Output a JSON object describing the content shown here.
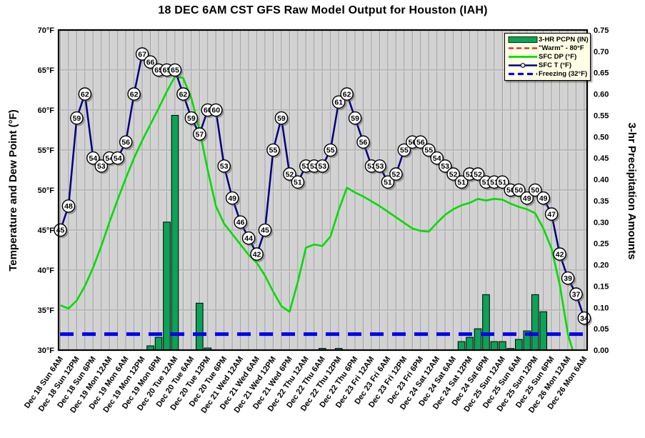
{
  "chart_data": {
    "type": "line",
    "title": "18 DEC 6AM CST GFS Raw Model Output for Houston (IAH)",
    "ylabel_left": "Temperature and Dew Point (°F)",
    "ylabel_right": "3-hr Precipitation Amounts",
    "plot": {
      "background": "#D2D2D2",
      "grid": true,
      "grid_color": "#9C9C9C",
      "border_color": "#000000"
    },
    "x_axis": {
      "start": "Dec 18 Sun 6AM",
      "step_hours": 3,
      "points": 65,
      "tick_labels": [
        "Dec 18 Sun 6AM",
        "Dec 18 Sun 12PM",
        "Dec 18 Sun 6PM",
        "Dec 19 Mon 12AM",
        "Dec 19 Mon 6AM",
        "Dec 19 Mon 12PM",
        "Dec 19 Mon 6PM",
        "Dec 20 Tue 12AM",
        "Dec 20 Tue 6AM",
        "Dec 20 Tue 12PM",
        "Dec 20 Tue 6PM",
        "Dec 21 Wed 12AM",
        "Dec 21 Wed 6AM",
        "Dec 21 Wed 12PM",
        "Dec 21 Wed 6PM",
        "Dec 22 Thu 12AM",
        "Dec 22 Thu 6AM",
        "Dec 22 Thu 12PM",
        "Dec 22 Thu 6PM",
        "Dec 23 Fri 12AM",
        "Dec 23 Fri 6AM",
        "Dec 23 Fri 12PM",
        "Dec 23 Fri 6PM",
        "Dec 24 Sat 12AM",
        "Dec 24 Sat 6AM",
        "Dec 24 Sat 12PM",
        "Dec 24 Sat 6PM",
        "Dec 25 Sun 12AM",
        "Dec 25 Sun 6AM",
        "Dec 25 Sun 12PM",
        "Dec 25 Sun 6PM",
        "Dec 26 Mon 12AM",
        "Dec 26 Mon 6AM"
      ]
    },
    "y_left_axis": {
      "min": 30,
      "max": 70,
      "step": 5,
      "tick_labels": [
        "70°F",
        "65°F",
        "60°F",
        "55°F",
        "50°F",
        "45°F",
        "40°F",
        "35°F",
        "30°F"
      ]
    },
    "y_right_axis": {
      "min": 0.0,
      "max": 0.75,
      "step": 0.05,
      "tick_labels": [
        "0.75",
        "0.70",
        "0.65",
        "0.60",
        "0.55",
        "0.50",
        "0.45",
        "0.40",
        "0.35",
        "0.30",
        "0.25",
        "0.20",
        "0.15",
        "0.10",
        "0.05",
        "0.00"
      ]
    },
    "series": [
      {
        "name": "3-HR PCPN (IN)",
        "type": "bar",
        "axis": "right",
        "color": "#0CA257",
        "values": [
          0,
          0,
          0,
          0,
          0,
          0,
          0,
          0,
          0,
          0,
          0,
          0.01,
          0.03,
          0.3,
          0.55,
          0,
          0,
          0.11,
          0.005,
          0,
          0,
          0,
          0,
          0,
          0,
          0,
          0,
          0,
          0,
          0,
          0,
          0,
          0.004,
          0,
          0.004,
          0,
          0,
          0,
          0,
          0,
          0,
          0,
          0,
          0,
          0,
          0,
          0,
          0,
          0,
          0.02,
          0.03,
          0.05,
          0.13,
          0.02,
          0.02,
          0.004,
          0.025,
          0.045,
          0.13,
          0.09,
          0,
          0,
          0,
          0,
          0
        ]
      },
      {
        "name": "\"Warm\" - 80°F",
        "type": "hline",
        "axis": "left",
        "color": "#E03030",
        "value": 80
      },
      {
        "name": "SFC DP (°F)",
        "type": "line",
        "axis": "left",
        "color": "#00DC00",
        "values": [
          35.6,
          35.2,
          36.2,
          38.0,
          40.3,
          43.0,
          46.0,
          48.8,
          51.5,
          54.0,
          56.2,
          58.2,
          60.2,
          62.3,
          64.2,
          64.0,
          61.5,
          57.5,
          52.5,
          48.0,
          45.8,
          44.5,
          43.2,
          41.9,
          40.9,
          39.3,
          37.3,
          35.5,
          34.8,
          38.5,
          42.8,
          43.2,
          43.0,
          44.2,
          47.5,
          50.3,
          49.7,
          49.2,
          48.6,
          48.0,
          47.3,
          46.6,
          45.9,
          45.2,
          44.9,
          44.8,
          45.9,
          46.9,
          47.6,
          48.1,
          48.4,
          48.9,
          48.7,
          48.9,
          48.8,
          48.3,
          47.9,
          47.6,
          47.1,
          45.2,
          42.7,
          38.2,
          32.0,
          28.5,
          24.0
        ]
      },
      {
        "name": "SFC T (°F)",
        "type": "line",
        "axis": "left",
        "color": "#000080",
        "point_labels": true,
        "values": [
          45,
          48,
          59,
          62,
          54,
          53,
          54,
          54,
          56,
          62,
          67,
          66,
          65,
          65,
          65,
          62,
          59,
          57,
          60,
          60,
          53,
          49,
          46,
          44,
          42,
          45,
          55,
          59,
          52,
          51,
          53,
          53,
          53,
          55,
          61,
          62,
          59,
          56,
          53,
          53,
          51,
          52,
          55,
          56,
          56,
          55,
          54,
          53,
          52,
          51,
          52,
          52,
          51,
          51,
          51,
          50,
          50,
          49,
          50,
          49,
          47,
          42,
          39,
          37,
          34
        ]
      },
      {
        "name": "Freezing (32°F)",
        "type": "hline",
        "axis": "left",
        "color": "#0000EE",
        "value": 32
      }
    ],
    "legend": {
      "position": "top-right",
      "background": "#FFFFE6",
      "items": [
        {
          "label": "3-HR PCPN (IN)",
          "swatch": "bar",
          "color": "#0CA257"
        },
        {
          "label": "\"Warm\" - 80°F",
          "swatch": "dashed-line",
          "color": "#E03030"
        },
        {
          "label": "SFC DP (°F)",
          "swatch": "solid-line",
          "color": "#00DC00"
        },
        {
          "label": "SFC T (°F)",
          "swatch": "line-marker",
          "color": "#000080"
        },
        {
          "label": "Freezing (32°F)",
          "swatch": "dashed-thick",
          "color": "#0000EE"
        }
      ]
    }
  }
}
